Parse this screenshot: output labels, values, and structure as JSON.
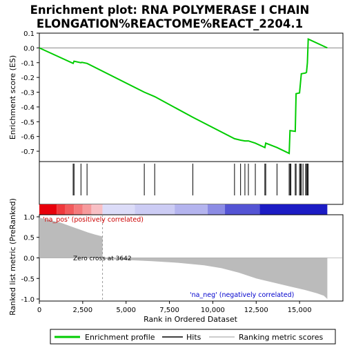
{
  "chart_data": {
    "type": "line",
    "title_line1": "Enrichment plot: RNA POLYMERASE I CHAIN",
    "title_line2": "ELONGATION%REACTOME%REACT_2204.1",
    "xlabel": "Rank in Ordered Dataset",
    "ylabel_top": "Enrichment score (ES)",
    "ylabel_bottom": "Ranked list metric (PreRanked)",
    "xlim": [
      0,
      17500
    ],
    "xticks": [
      0,
      2500,
      5000,
      7500,
      10000,
      12500,
      15000
    ],
    "xtick_labels": [
      "0",
      "2,500",
      "5,000",
      "7,500",
      "10,000",
      "12,500",
      "15,000"
    ],
    "es_ylim": [
      -0.77,
      0.1
    ],
    "es_yticks": [
      0.1,
      0.0,
      -0.1,
      -0.2,
      -0.3,
      -0.4,
      -0.5,
      -0.6,
      -0.7
    ],
    "es_ytick_labels": [
      "0.1",
      "0.0",
      "-0.1",
      "-0.2",
      "-0.3",
      "-0.4",
      "-0.5",
      "-0.6",
      "-0.7"
    ],
    "metric_ylim": [
      -1.05,
      1.05
    ],
    "metric_yticks": [
      1.0,
      0.5,
      0.0,
      -0.5,
      -1.0
    ],
    "metric_ytick_labels": [
      "1.0",
      "0.5",
      "0.0",
      "-0.5",
      "-1.0"
    ],
    "n_genes": 16600,
    "zero_cross": 3642,
    "zero_cross_label": "Zero cross at 3642",
    "pos_label": "'na_pos' (positively correlated)",
    "neg_label": "'na_neg' (negatively correlated)",
    "series": [
      {
        "name": "Enrichment profile",
        "color": "#00cc00",
        "x": [
          0,
          1950,
          2000,
          2400,
          2450,
          2750,
          6050,
          6650,
          8850,
          11250,
          11600,
          11850,
          12050,
          12450,
          13000,
          13050,
          13700,
          14400,
          14450,
          14750,
          14800,
          15000,
          15100,
          15350,
          15400,
          15450,
          15500,
          16600
        ],
        "y": [
          0.0,
          -0.105,
          -0.09,
          -0.1,
          -0.098,
          -0.105,
          -0.3,
          -0.33,
          -0.47,
          -0.615,
          -0.625,
          -0.63,
          -0.63,
          -0.645,
          -0.675,
          -0.645,
          -0.675,
          -0.715,
          -0.56,
          -0.565,
          -0.31,
          -0.305,
          -0.175,
          -0.17,
          -0.165,
          -0.1,
          0.06,
          0.0
        ]
      }
    ],
    "hits": [
      1950,
      2000,
      2400,
      2750,
      6050,
      6650,
      8850,
      11250,
      11600,
      11850,
      12050,
      12450,
      13000,
      13050,
      13700,
      14400,
      14450,
      14500,
      14750,
      14800,
      15000,
      15050,
      15100,
      15200,
      15350,
      15400,
      15450,
      15500
    ],
    "metric_curve": {
      "x": [
        0,
        400,
        800,
        1200,
        1600,
        2000,
        2400,
        2800,
        3200,
        3642,
        3643,
        5000,
        6500,
        8000,
        9500,
        10500,
        11500,
        12500,
        13500,
        14500,
        15300,
        16000,
        16400,
        16600
      ],
      "y": [
        0.98,
        0.94,
        0.9,
        0.86,
        0.8,
        0.74,
        0.68,
        0.62,
        0.57,
        0.52,
        -0.02,
        -0.05,
        -0.08,
        -0.12,
        -0.18,
        -0.25,
        -0.36,
        -0.5,
        -0.6,
        -0.7,
        -0.78,
        -0.86,
        -0.92,
        -1.0
      ]
    },
    "color_bar": [
      {
        "start": 0,
        "end": 1000,
        "color": "#e8000b"
      },
      {
        "start": 1000,
        "end": 1500,
        "color": "#f0383c"
      },
      {
        "start": 1500,
        "end": 2000,
        "color": "#f25a5c"
      },
      {
        "start": 2000,
        "end": 2500,
        "color": "#f47a7c"
      },
      {
        "start": 2500,
        "end": 3000,
        "color": "#f69a9c"
      },
      {
        "start": 3000,
        "end": 3642,
        "color": "#f8bfc4"
      },
      {
        "start": 3642,
        "end": 5500,
        "color": "#dcdcf8"
      },
      {
        "start": 5500,
        "end": 7800,
        "color": "#ccccf4"
      },
      {
        "start": 7800,
        "end": 9700,
        "color": "#b4b4ee"
      },
      {
        "start": 9700,
        "end": 10700,
        "color": "#8c8ce4"
      },
      {
        "start": 10700,
        "end": 12700,
        "color": "#5454d4"
      },
      {
        "start": 12700,
        "end": 16600,
        "color": "#1c1cc4"
      }
    ],
    "legend": [
      {
        "label": "Enrichment profile",
        "color": "#00cc00",
        "kind": "line-thick"
      },
      {
        "label": "Hits",
        "color": "#000000",
        "kind": "line"
      },
      {
        "label": "Ranking metric scores",
        "color": "#bbbbbb",
        "kind": "line"
      }
    ]
  }
}
